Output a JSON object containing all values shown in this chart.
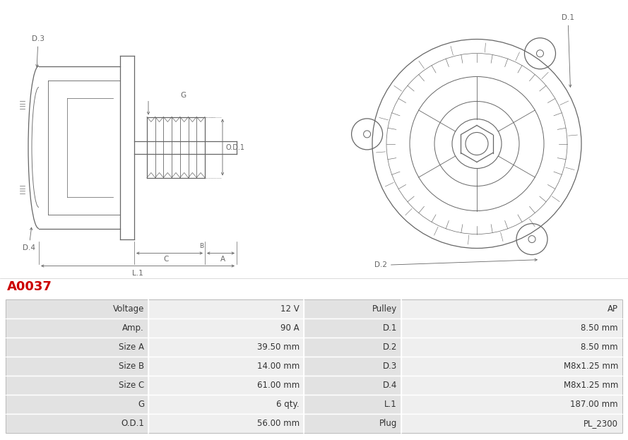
{
  "title": "A0037",
  "title_color": "#cc0000",
  "background_color": "#ffffff",
  "table_row_bg1": "#e2e2e2",
  "table_row_bg2": "#efefef",
  "text_color": "#333333",
  "drawing_color": "#666666",
  "rows": [
    [
      "Voltage",
      "12 V",
      "Pulley",
      "AP"
    ],
    [
      "Amp.",
      "90 A",
      "D.1",
      "8.50 mm"
    ],
    [
      "Size A",
      "39.50 mm",
      "D.2",
      "8.50 mm"
    ],
    [
      "Size B",
      "14.00 mm",
      "D.3",
      "M8x1.25 mm"
    ],
    [
      "Size C",
      "61.00 mm",
      "D.4",
      "M8x1.25 mm"
    ],
    [
      "G",
      "6 qty.",
      "L.1",
      "187.00 mm"
    ],
    [
      "O.D.1",
      "56.00 mm",
      "Plug",
      "PL_2300"
    ]
  ],
  "fig_width": 8.89,
  "fig_height": 6.23,
  "dpi": 100
}
